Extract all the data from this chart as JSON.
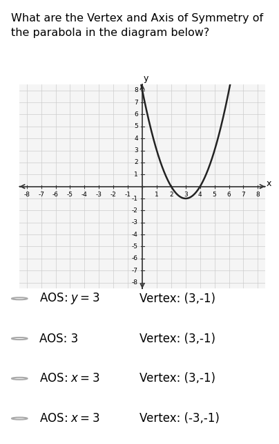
{
  "title": "What are the Vertex and Axis of Symmetry of\nthe parabola in the diagram below?",
  "title_fontsize": 11.5,
  "graph_xlim": [
    -8.5,
    8.5
  ],
  "graph_ylim": [
    -8.5,
    8.5
  ],
  "x_ticks": [
    -8,
    -7,
    -6,
    -5,
    -4,
    -3,
    -2,
    -1,
    0,
    1,
    2,
    3,
    4,
    5,
    6,
    7,
    8
  ],
  "y_ticks": [
    -8,
    -7,
    -6,
    -5,
    -4,
    -3,
    -2,
    -1,
    0,
    1,
    2,
    3,
    4,
    5,
    6,
    7,
    8
  ],
  "parabola_vertex_x": 3,
  "parabola_vertex_y": -1,
  "parabola_a": 1,
  "curve_color": "#222222",
  "grid_color": "#cccccc",
  "axis_color": "#333333",
  "bg_color": "#f5f5f5",
  "choices": [
    {
      "aos": "AOS: $y = 3$",
      "vertex": "Vertex: (3,-1)"
    },
    {
      "aos": "AOS: 3",
      "vertex": "Vertex: (3,-1)"
    },
    {
      "aos": "AOS: $x = 3$",
      "vertex": "Vertex: (3,-1)"
    },
    {
      "aos": "AOS: $x = 3$",
      "vertex": "Vertex: (-3,-1)"
    }
  ],
  "choice_fontsize": 12,
  "radio_color": "#aaaaaa"
}
